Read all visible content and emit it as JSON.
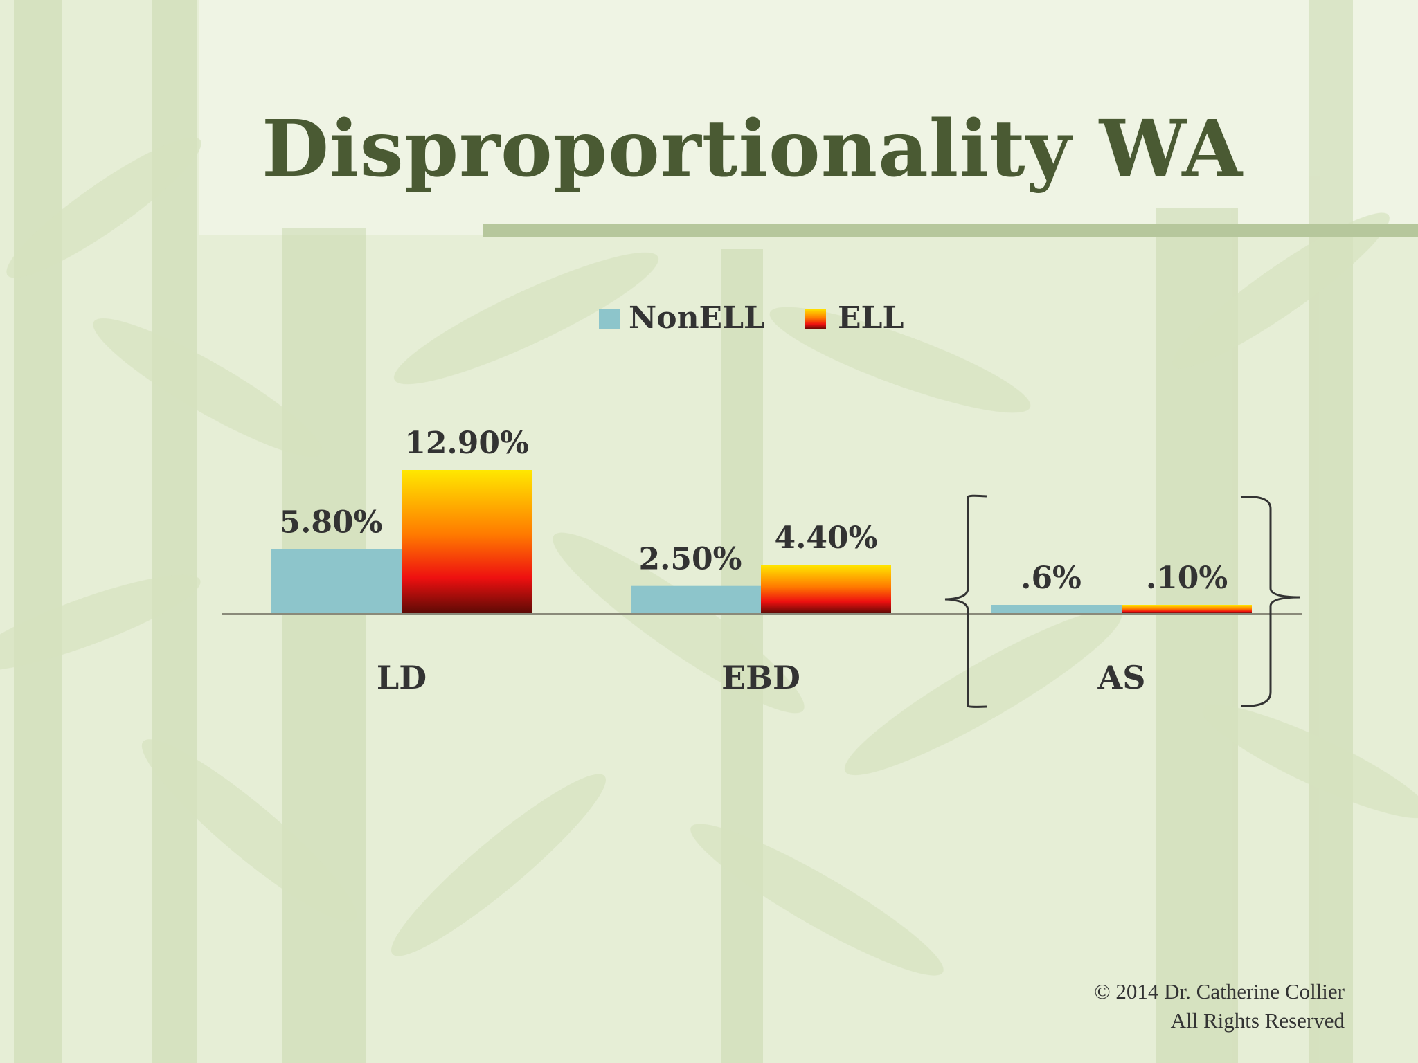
{
  "slide": {
    "title": "Disproportionality WA",
    "footer_line1": "© 2014 Dr. Catherine Collier",
    "footer_line2": "All Rights Reserved"
  },
  "colors": {
    "background": "#e7efd8",
    "title": "#4a5a33",
    "nonell": "#8dc5cb",
    "ell_top": "#ffe800",
    "ell_mid": "#ff7a00",
    "ell_low": "#ee1010",
    "ell_bottom": "#5a0a05"
  },
  "chart_data": {
    "type": "bar",
    "title": "",
    "xlabel": "",
    "ylabel": "",
    "categories": [
      "LD",
      "EBD",
      "AS"
    ],
    "series": [
      {
        "name": "NonELL",
        "values": [
          5.8,
          2.5,
          0.6
        ],
        "labels": [
          "5.80%",
          "2.50%",
          ".6%"
        ]
      },
      {
        "name": "ELL",
        "values": [
          12.9,
          4.4,
          0.1
        ],
        "labels": [
          "12.90%",
          "4.40%",
          ".10%"
        ]
      }
    ],
    "ylim": [
      0,
      12.9
    ],
    "grid": false,
    "legend_position": "top-center",
    "annotation": "brace around AS group"
  }
}
